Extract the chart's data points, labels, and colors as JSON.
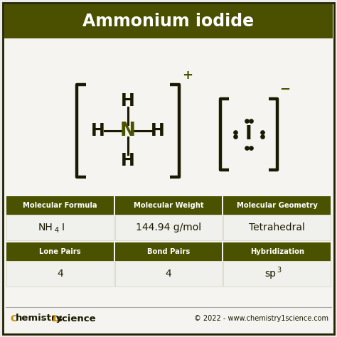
{
  "title": "Ammonium iodide",
  "title_bg": "#4a5000",
  "title_color": "#ffffff",
  "bg_color": "#ebebeb",
  "panel_bg": "#f2f2f0",
  "olive_green": "#4a5200",
  "charge_color": "#4a5200",
  "text_dark": "#1a1a00",
  "header_color": "#ffffff",
  "row1_headers": [
    "Molecular Formula",
    "Molecular Weight",
    "Molecular Geometry"
  ],
  "row1_values": [
    "NH4I",
    "144.94 g/mol",
    "Tetrahedral"
  ],
  "row2_headers": [
    "Lone Pairs",
    "Bond Pairs",
    "Hybridization"
  ],
  "row2_values": [
    "4",
    "4",
    "sp3"
  ],
  "footer_year": "© 2022 - www.chemistry1science.com",
  "outer_border": "#222200",
  "cell_border": "#c8c8b0",
  "cell_bg": "#f0f0ec"
}
